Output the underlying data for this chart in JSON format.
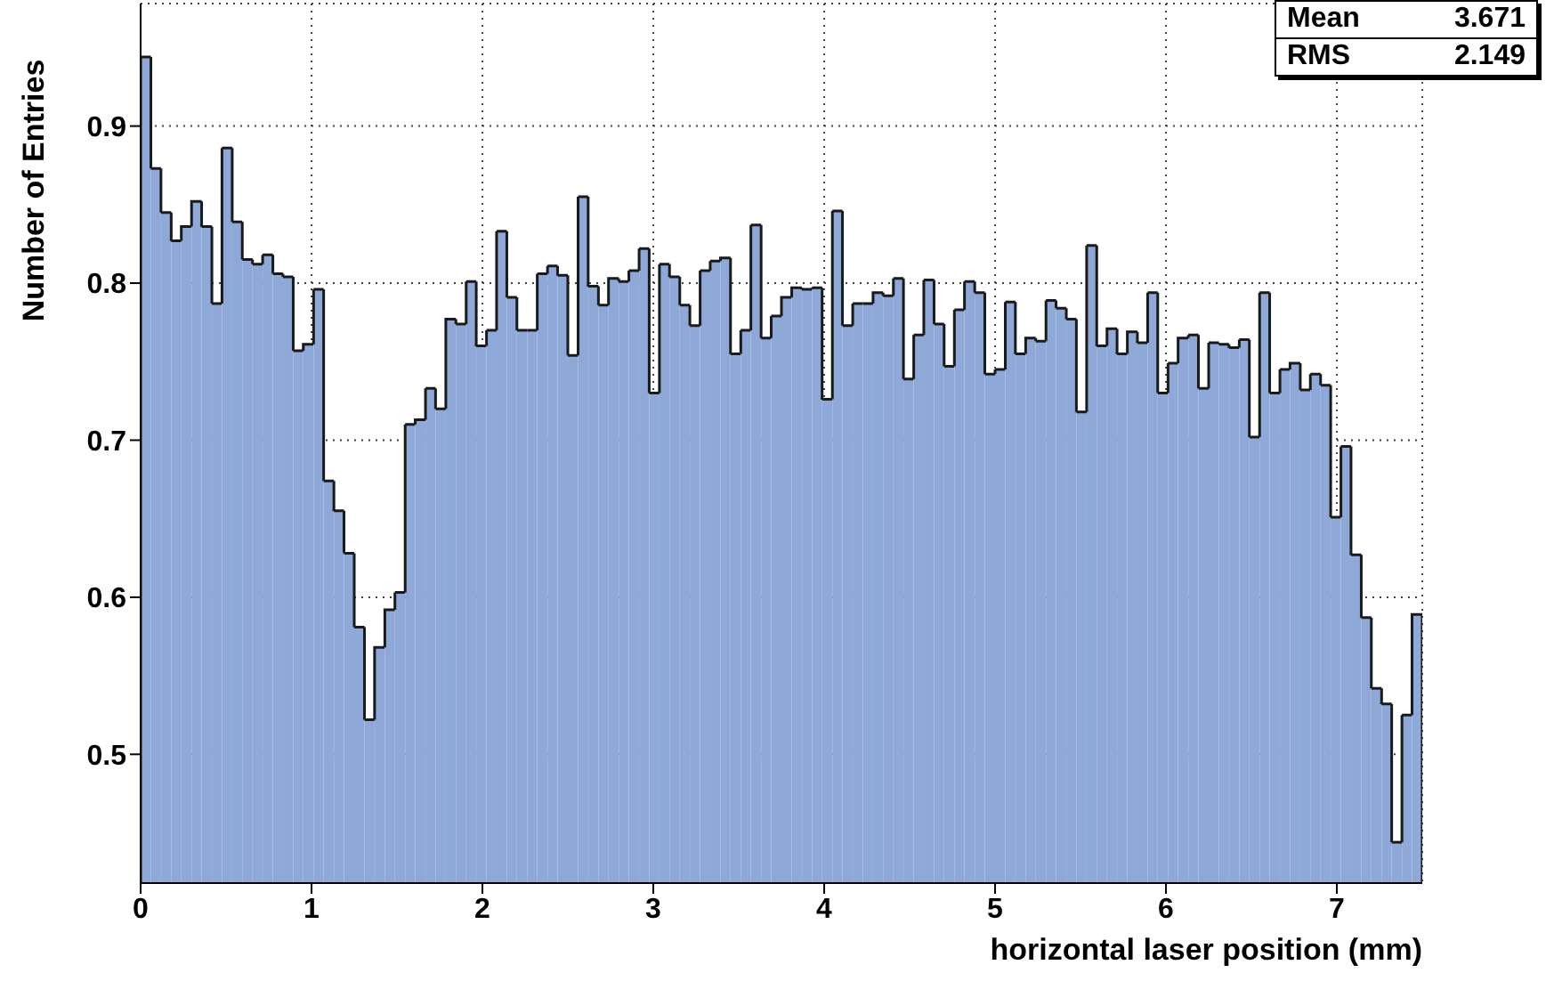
{
  "chart_data": {
    "type": "histogram",
    "xlabel": "horizontal laser position (mm)",
    "ylabel": "Number of Entries",
    "annotations": [
      "Mean 3.671",
      "RMS 2.149"
    ],
    "color": "#8ea8d8",
    "bins": [
      0,
      0.06,
      0.119,
      0.179,
      0.238,
      0.298,
      0.357,
      0.417,
      0.476,
      0.536,
      0.595,
      0.655,
      0.714,
      0.774,
      0.833,
      0.893,
      0.952,
      1.012,
      1.071,
      1.131,
      1.19,
      1.25,
      1.31,
      1.369,
      1.429,
      1.488,
      1.548,
      1.607,
      1.667,
      1.726,
      1.786,
      1.845,
      1.905,
      1.964,
      2.024,
      2.083,
      2.143,
      2.202,
      2.262,
      2.321,
      2.381,
      2.44,
      2.5,
      2.56,
      2.619,
      2.679,
      2.738,
      2.798,
      2.857,
      2.917,
      2.976,
      3.036,
      3.095,
      3.155,
      3.214,
      3.274,
      3.333,
      3.393,
      3.452,
      3.512,
      3.571,
      3.631,
      3.69,
      3.75,
      3.81,
      3.869,
      3.929,
      3.988,
      4.048,
      4.107,
      4.167,
      4.226,
      4.286,
      4.345,
      4.405,
      4.464,
      4.524,
      4.583,
      4.643,
      4.702,
      4.762,
      4.821,
      4.881,
      4.94,
      5.0,
      5.06,
      5.119,
      5.179,
      5.238,
      5.298,
      5.357,
      5.417,
      5.476,
      5.536,
      5.595,
      5.655,
      5.714,
      5.774,
      5.833,
      5.893,
      5.952,
      6.012,
      6.071,
      6.131,
      6.19,
      6.25,
      6.31,
      6.369,
      6.429,
      6.488,
      6.548,
      6.607,
      6.667,
      6.726,
      6.786,
      6.845,
      6.905,
      6.964,
      7.024,
      7.083,
      7.143,
      7.202,
      7.262,
      7.321,
      7.381,
      7.44,
      7.5
    ],
    "values": [
      0.944,
      0.873,
      0.845,
      0.827,
      0.836,
      0.852,
      0.836,
      0.787,
      0.886,
      0.839,
      0.815,
      0.812,
      0.818,
      0.806,
      0.804,
      0.757,
      0.761,
      0.796,
      0.674,
      0.655,
      0.628,
      0.581,
      0.522,
      0.568,
      0.592,
      0.603,
      0.71,
      0.713,
      0.733,
      0.72,
      0.777,
      0.774,
      0.801,
      0.76,
      0.77,
      0.833,
      0.791,
      0.77,
      0.77,
      0.806,
      0.811,
      0.805,
      0.754,
      0.855,
      0.798,
      0.786,
      0.803,
      0.801,
      0.808,
      0.822,
      0.73,
      0.812,
      0.804,
      0.786,
      0.773,
      0.808,
      0.814,
      0.816,
      0.755,
      0.77,
      0.837,
      0.765,
      0.779,
      0.791,
      0.797,
      0.796,
      0.797,
      0.726,
      0.846,
      0.773,
      0.787,
      0.787,
      0.794,
      0.792,
      0.803,
      0.739,
      0.767,
      0.802,
      0.774,
      0.747,
      0.783,
      0.801,
      0.794,
      0.742,
      0.745,
      0.788,
      0.755,
      0.765,
      0.763,
      0.789,
      0.784,
      0.777,
      0.718,
      0.824,
      0.76,
      0.771,
      0.755,
      0.769,
      0.762,
      0.794,
      0.73,
      0.749,
      0.765,
      0.767,
      0.733,
      0.762,
      0.761,
      0.759,
      0.764,
      0.702,
      0.794,
      0.73,
      0.745,
      0.749,
      0.732,
      0.742,
      0.735,
      0.651,
      0.696,
      0.627,
      0.587,
      0.542,
      0.532,
      0.444,
      0.525,
      0.589
    ],
    "xlim": [
      0,
      7.5
    ],
    "xticks": [
      0,
      1,
      2,
      3,
      4,
      5,
      6,
      7
    ],
    "ylim": [
      0.418,
      0.978
    ],
    "yticks": [
      0.5,
      0.6,
      0.7,
      0.8,
      0.9
    ],
    "grid": true
  }
}
